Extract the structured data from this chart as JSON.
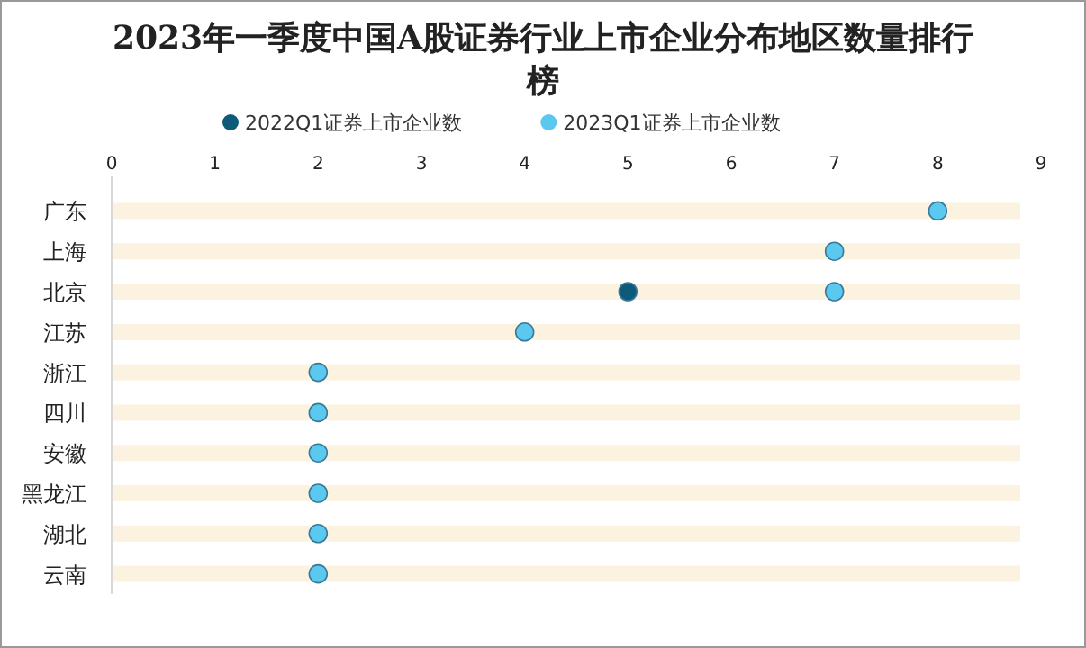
{
  "chart_data": {
    "type": "scatter",
    "orientation": "horizontal",
    "title": "2023年一季度中国A股证券行业上市企业分布地区数量排行榜",
    "categories": [
      "广东",
      "上海",
      "北京",
      "江苏",
      "浙江",
      "四川",
      "安徽",
      "黑龙江",
      "湖北",
      "云南"
    ],
    "series": [
      {
        "type": "bar",
        "color": "#fbf3e0",
        "values": [
          8.8,
          8.8,
          8.8,
          8.8,
          8.8,
          8.8,
          8.8,
          8.8,
          8.8,
          8.8
        ]
      },
      {
        "name": "2022Q1证券上市企业数",
        "color": "#0e5a7a",
        "values": [
          null,
          null,
          5,
          null,
          null,
          null,
          null,
          null,
          null,
          null
        ]
      },
      {
        "name": "2023Q1证券上市企业数",
        "color": "#5bc8f0",
        "values": [
          8,
          7,
          7,
          4,
          2,
          2,
          2,
          2,
          2,
          2
        ]
      }
    ],
    "xlim": [
      0,
      9
    ],
    "xticks": [
      0,
      1,
      2,
      3,
      4,
      5,
      6,
      7,
      8,
      9
    ],
    "legend": "top",
    "marker": "circle",
    "grid": false
  }
}
